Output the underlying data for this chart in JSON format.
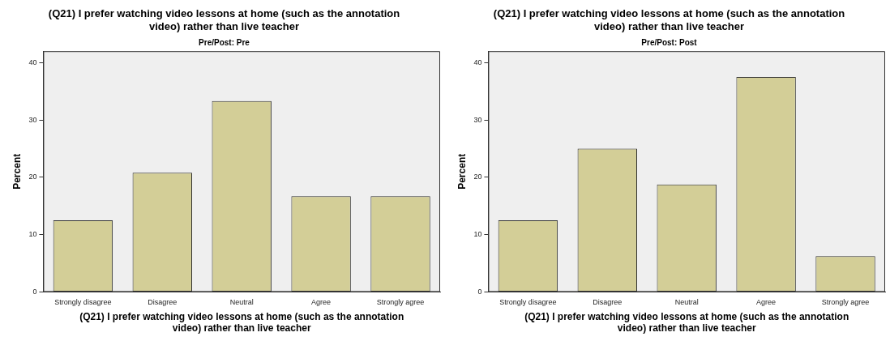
{
  "chart_data": [
    {
      "type": "bar",
      "title": "(Q21) I prefer watching video lessons at home (such as the annotation video) rather than live teacher",
      "subtitle": "Pre/Post: Pre",
      "xlabel": "(Q21) I prefer watching video lessons at home (such as the annotation video) rather than live teacher",
      "ylabel": "Percent",
      "categories": [
        "Strongly disagree",
        "Disagree",
        "Neutral",
        "Agree",
        "Strongly agree"
      ],
      "values": [
        12.5,
        20.8,
        33.3,
        16.7,
        16.7
      ],
      "color": "#d3ce97",
      "ylim": [
        0,
        42
      ],
      "yticks": [
        0,
        10,
        20,
        30,
        40
      ],
      "grid": false,
      "legend": false
    },
    {
      "type": "bar",
      "title": "(Q21) I prefer watching video lessons at home (such as the annotation video) rather than live teacher",
      "subtitle": "Pre/Post: Post",
      "xlabel": "(Q21) I prefer watching video lessons at home (such as the annotation video) rather than live teacher",
      "ylabel": "Percent",
      "categories": [
        "Strongly disagree",
        "Disagree",
        "Neutral",
        "Agree",
        "Strongly agree"
      ],
      "values": [
        12.5,
        25,
        18.75,
        37.5,
        6.25
      ],
      "color": "#d3ce97",
      "ylim": [
        0,
        42
      ],
      "yticks": [
        0,
        10,
        20,
        30,
        40
      ],
      "grid": false,
      "legend": false
    }
  ]
}
